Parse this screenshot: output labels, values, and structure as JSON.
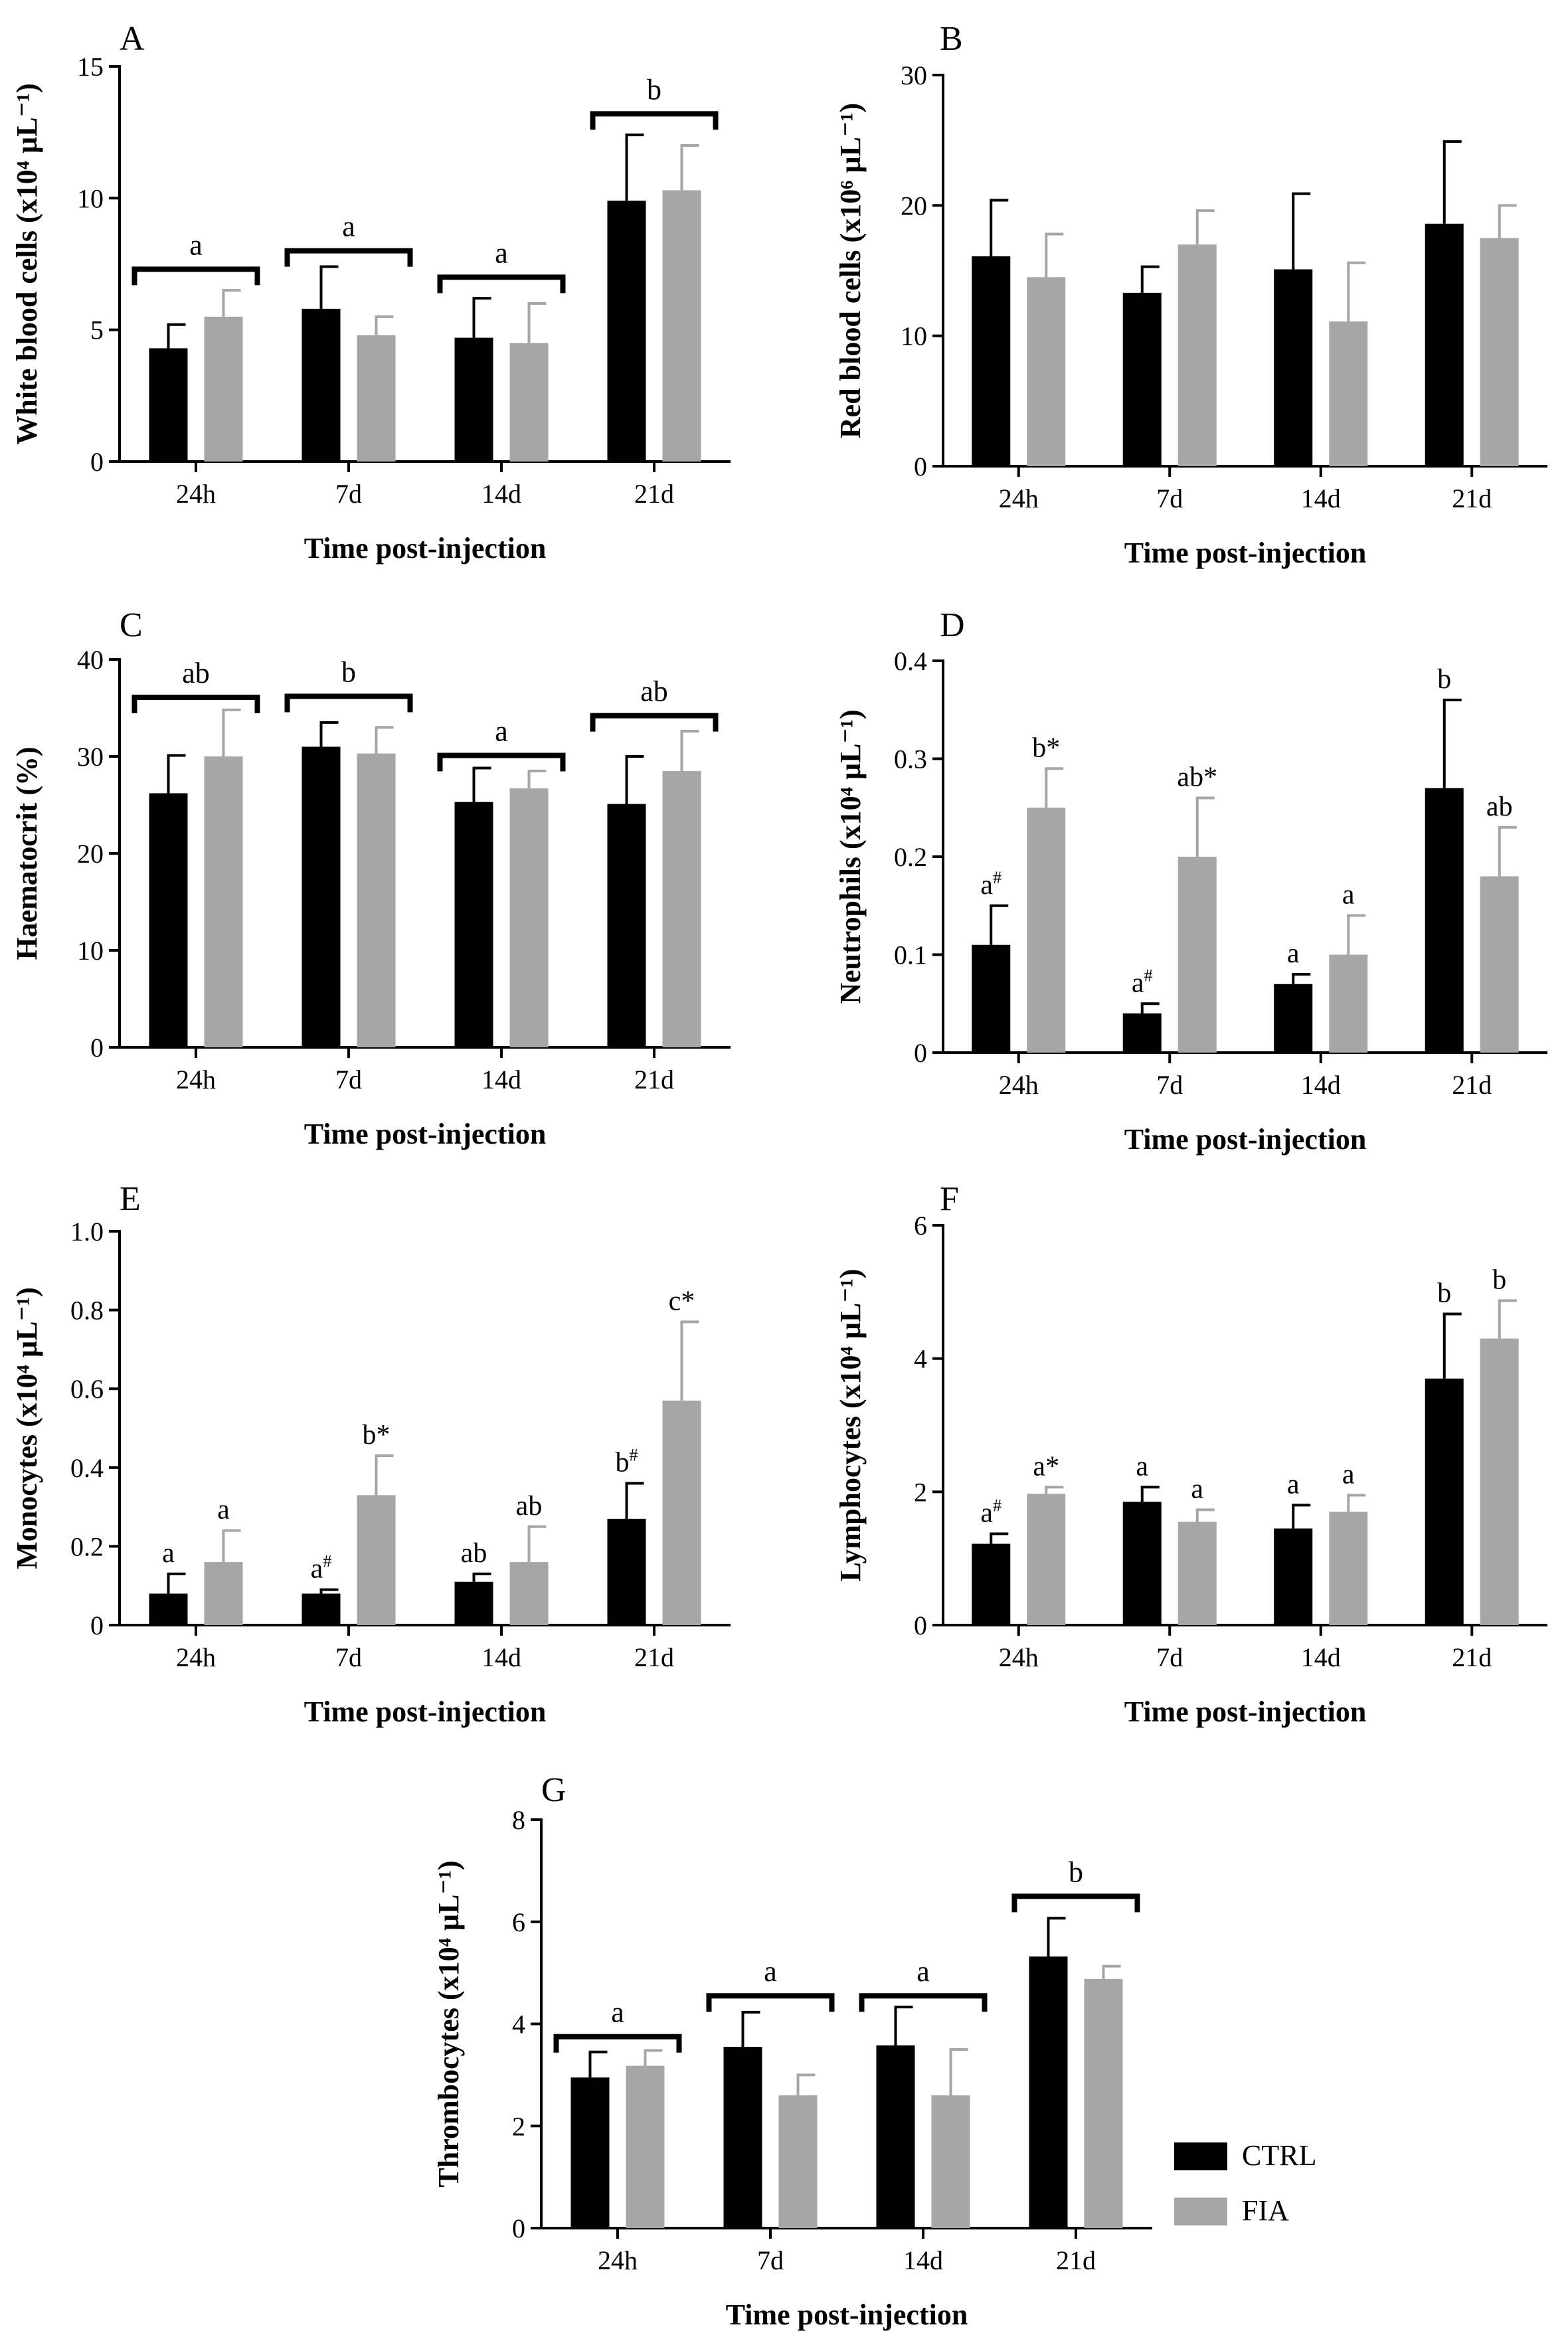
{
  "legend": {
    "items": [
      {
        "label": "CTRL",
        "color": "#000000"
      },
      {
        "label": "FIA",
        "color": "#a6a6a6"
      }
    ]
  },
  "colors": {
    "ctrl": "#000000",
    "fia": "#a6a6a6",
    "axis": "#000000"
  },
  "chart_data": [
    {
      "id": "A",
      "type": "bar",
      "panel_label": "A",
      "title": "",
      "xlabel": "Time post-injection",
      "ylabel": "White blood cells (x10⁴ µL⁻¹)",
      "categories": [
        "24h",
        "7d",
        "14d",
        "21d"
      ],
      "ylim": [
        0,
        15
      ],
      "yticks": [
        0,
        5,
        10,
        15
      ],
      "series": [
        {
          "name": "CTRL",
          "values": [
            4.3,
            5.8,
            4.7,
            9.9
          ],
          "errors": [
            0.9,
            1.6,
            1.5,
            2.5
          ]
        },
        {
          "name": "FIA",
          "values": [
            5.5,
            4.8,
            4.5,
            10.3
          ],
          "errors": [
            1.0,
            0.7,
            1.5,
            1.7
          ]
        }
      ],
      "group_annotations": [
        {
          "label": "a",
          "level": 7.3
        },
        {
          "label": "a",
          "level": 8.0
        },
        {
          "label": "a",
          "level": 7.0
        },
        {
          "label": "b",
          "level": 13.2
        }
      ],
      "bar_annotations": []
    },
    {
      "id": "B",
      "type": "bar",
      "panel_label": "B",
      "title": "",
      "xlabel": "Time post-injection",
      "ylabel": "Red blood cells (x10⁶ µL⁻¹)",
      "categories": [
        "24h",
        "7d",
        "14d",
        "21d"
      ],
      "ylim": [
        0,
        30
      ],
      "yticks": [
        0,
        10,
        20,
        30
      ],
      "series": [
        {
          "name": "CTRL",
          "values": [
            16.1,
            13.3,
            15.1,
            18.6
          ],
          "errors": [
            4.3,
            2.0,
            5.8,
            6.3
          ]
        },
        {
          "name": "FIA",
          "values": [
            14.5,
            17.0,
            11.1,
            17.5
          ],
          "errors": [
            3.3,
            2.6,
            4.5,
            2.5
          ]
        }
      ],
      "group_annotations": [],
      "bar_annotations": []
    },
    {
      "id": "C",
      "type": "bar",
      "panel_label": "C",
      "title": "",
      "xlabel": "Time post-injection",
      "ylabel": "Haematocrit (%)",
      "categories": [
        "24h",
        "7d",
        "14d",
        "21d"
      ],
      "ylim": [
        0,
        40
      ],
      "yticks": [
        0,
        10,
        20,
        30,
        40
      ],
      "series": [
        {
          "name": "CTRL",
          "values": [
            26.2,
            31.0,
            25.3,
            25.1
          ],
          "errors": [
            3.9,
            2.5,
            3.5,
            4.9
          ]
        },
        {
          "name": "FIA",
          "values": [
            30.0,
            30.3,
            26.7,
            28.5
          ],
          "errors": [
            4.8,
            2.7,
            1.8,
            4.1
          ]
        }
      ],
      "group_annotations": [
        {
          "label": "ab",
          "level": 36.1
        },
        {
          "label": "b",
          "level": 36.2
        },
        {
          "label": "a",
          "level": 30.1
        },
        {
          "label": "ab",
          "level": 34.2
        }
      ],
      "bar_annotations": []
    },
    {
      "id": "D",
      "type": "bar",
      "panel_label": "D",
      "title": "",
      "xlabel": "Time post-injection",
      "ylabel": "Neutrophils (x10⁴ µL⁻¹)",
      "categories": [
        "24h",
        "7d",
        "14d",
        "21d"
      ],
      "ylim": [
        0,
        0.4
      ],
      "yticks": [
        0.0,
        0.1,
        0.2,
        0.3,
        0.4
      ],
      "ytick_labels": [
        "0",
        "0.1",
        "0.2",
        "0.3",
        "0.4"
      ],
      "series": [
        {
          "name": "CTRL",
          "values": [
            0.11,
            0.04,
            0.07,
            0.27
          ],
          "errors": [
            0.04,
            0.01,
            0.01,
            0.09
          ]
        },
        {
          "name": "FIA",
          "values": [
            0.25,
            0.2,
            0.1,
            0.18
          ],
          "errors": [
            0.04,
            0.06,
            0.04,
            0.05
          ]
        }
      ],
      "group_annotations": [],
      "bar_annotations": [
        {
          "label": "a",
          "sup": "#"
        },
        {
          "label": "b",
          "sup": "*"
        },
        {
          "label": "a",
          "sup": "#"
        },
        {
          "label": "ab",
          "sup": "*"
        },
        {
          "label": "a",
          "sup": ""
        },
        {
          "label": "a",
          "sup": ""
        },
        {
          "label": "b",
          "sup": ""
        },
        {
          "label": "ab",
          "sup": ""
        }
      ]
    },
    {
      "id": "E",
      "type": "bar",
      "panel_label": "E",
      "title": "",
      "xlabel": "Time post-injection",
      "ylabel": "Monocytes (x10⁴ µL⁻¹)",
      "categories": [
        "24h",
        "7d",
        "14d",
        "21d"
      ],
      "ylim": [
        0,
        1.0
      ],
      "yticks": [
        0.0,
        0.2,
        0.4,
        0.6,
        0.8,
        1.0
      ],
      "ytick_labels": [
        "0",
        "0.2",
        "0.4",
        "0.6",
        "0.8",
        "1.0"
      ],
      "series": [
        {
          "name": "CTRL",
          "values": [
            0.08,
            0.08,
            0.11,
            0.27
          ],
          "errors": [
            0.05,
            0.01,
            0.02,
            0.09
          ]
        },
        {
          "name": "FIA",
          "values": [
            0.16,
            0.33,
            0.16,
            0.57
          ],
          "errors": [
            0.08,
            0.1,
            0.09,
            0.2
          ]
        }
      ],
      "group_annotations": [],
      "bar_annotations": [
        {
          "label": "a",
          "sup": ""
        },
        {
          "label": "a",
          "sup": ""
        },
        {
          "label": "a",
          "sup": "#"
        },
        {
          "label": "b",
          "sup": "*"
        },
        {
          "label": "ab",
          "sup": ""
        },
        {
          "label": "ab",
          "sup": ""
        },
        {
          "label": "b",
          "sup": "#"
        },
        {
          "label": "c",
          "sup": "*"
        }
      ]
    },
    {
      "id": "F",
      "type": "bar",
      "panel_label": "F",
      "title": "",
      "xlabel": "Time post-injection",
      "ylabel": "Lymphocytes (x10⁴ µL⁻¹)",
      "categories": [
        "24h",
        "7d",
        "14d",
        "21d"
      ],
      "ylim": [
        0,
        6
      ],
      "yticks": [
        0,
        2,
        4,
        6
      ],
      "series": [
        {
          "name": "CTRL",
          "values": [
            1.22,
            1.85,
            1.45,
            3.7
          ],
          "errors": [
            0.15,
            0.22,
            0.35,
            0.97
          ]
        },
        {
          "name": "FIA",
          "values": [
            1.97,
            1.55,
            1.7,
            4.3
          ],
          "errors": [
            0.1,
            0.18,
            0.25,
            0.57
          ]
        }
      ],
      "group_annotations": [],
      "bar_annotations": [
        {
          "label": "a",
          "sup": "#"
        },
        {
          "label": "a",
          "sup": "*"
        },
        {
          "label": "a",
          "sup": ""
        },
        {
          "label": "a",
          "sup": ""
        },
        {
          "label": "a",
          "sup": ""
        },
        {
          "label": "a",
          "sup": ""
        },
        {
          "label": "b",
          "sup": ""
        },
        {
          "label": "b",
          "sup": ""
        }
      ]
    },
    {
      "id": "G",
      "type": "bar",
      "panel_label": "G",
      "title": "",
      "xlabel": "Time post-injection",
      "ylabel": "Thrombocytes (x10⁴ µL⁻¹)",
      "categories": [
        "24h",
        "7d",
        "14d",
        "21d"
      ],
      "ylim": [
        0,
        8
      ],
      "yticks": [
        0,
        2,
        4,
        6,
        8
      ],
      "series": [
        {
          "name": "CTRL",
          "values": [
            2.95,
            3.55,
            3.58,
            5.32
          ],
          "errors": [
            0.5,
            0.68,
            0.75,
            0.75
          ]
        },
        {
          "name": "FIA",
          "values": [
            3.18,
            2.6,
            2.6,
            4.88
          ],
          "errors": [
            0.3,
            0.4,
            0.9,
            0.25
          ]
        }
      ],
      "group_annotations": [
        {
          "label": "a",
          "level": 3.75
        },
        {
          "label": "a",
          "level": 4.55
        },
        {
          "label": "a",
          "level": 4.55
        },
        {
          "label": "b",
          "level": 6.5
        }
      ],
      "bar_annotations": []
    }
  ]
}
